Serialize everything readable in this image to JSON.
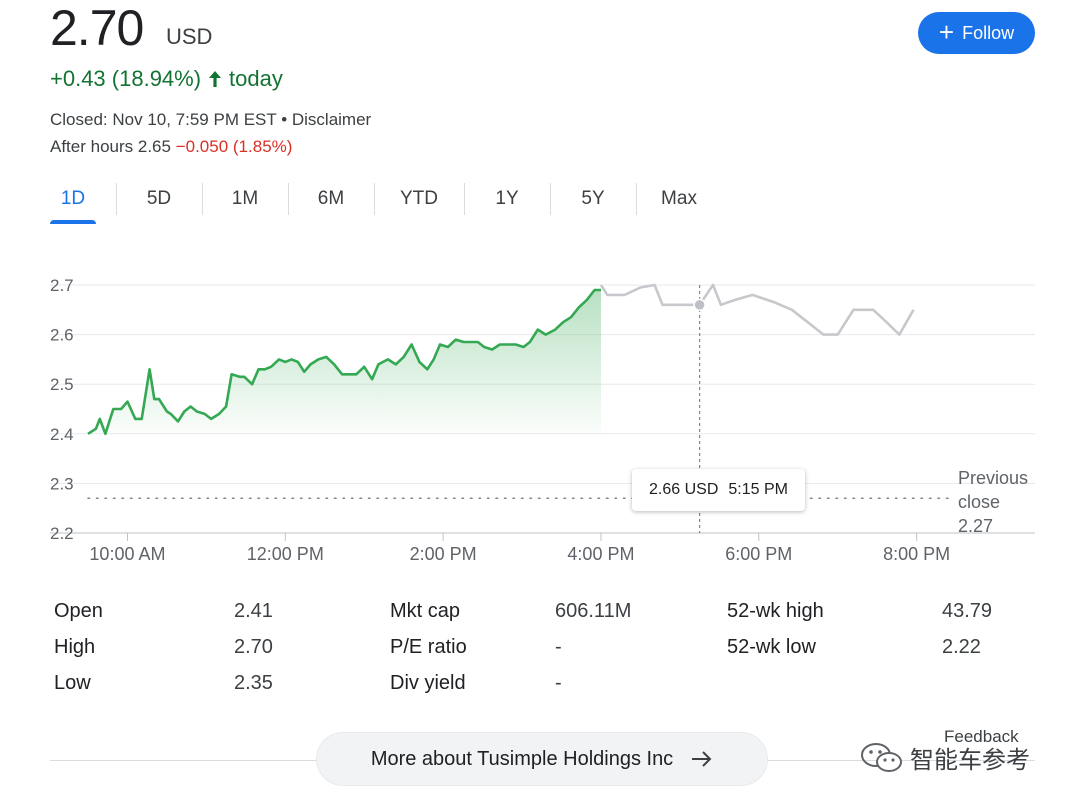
{
  "quote": {
    "price": "2.70",
    "currency": "USD",
    "change": "+0.43 (18.94%)",
    "change_suffix": "today",
    "closed_text": "Closed: Nov 10, 7:59 PM EST",
    "separator": " • ",
    "disclaimer": "Disclaimer",
    "after_hours_label": "After hours 2.65",
    "after_hours_change": "−0.050 (1.85%)",
    "up_color": "#137333",
    "down_color": "#d93025"
  },
  "follow_button": {
    "label": "Follow",
    "icon": "plus-icon"
  },
  "tabs": [
    "1D",
    "5D",
    "1M",
    "6M",
    "YTD",
    "1Y",
    "5Y",
    "Max"
  ],
  "active_tab": "1D",
  "tooltip": {
    "price": "2.66 USD",
    "time": "5:15 PM"
  },
  "previous_close": {
    "label_line1": "Previous",
    "label_line2": "close",
    "value": "2.27"
  },
  "stats": [
    [
      {
        "label": "Open",
        "value": "2.41"
      },
      {
        "label": "Mkt cap",
        "value": "606.11M"
      },
      {
        "label": "52-wk high",
        "value": "43.79"
      }
    ],
    [
      {
        "label": "High",
        "value": "2.70"
      },
      {
        "label": "P/E ratio",
        "value": "-"
      },
      {
        "label": "52-wk low",
        "value": "2.22"
      }
    ],
    [
      {
        "label": "Low",
        "value": "2.35"
      },
      {
        "label": "Div yield",
        "value": "-"
      }
    ]
  ],
  "feedback_label": "Feedback",
  "more_button": {
    "label": "More about Tusimple Holdings Inc",
    "icon": "arrow-right-icon"
  },
  "watermark": {
    "text": "智能车参考",
    "icon": "wechat-icon"
  },
  "chart_data": {
    "type": "line",
    "title": "",
    "xlabel": "",
    "ylabel": "",
    "x_unit": "hour of day",
    "xlim": [
      9.5,
      21.5
    ],
    "ylim": [
      2.2,
      2.7
    ],
    "y_ticks": [
      2.2,
      2.3,
      2.4,
      2.5,
      2.6,
      2.7
    ],
    "x_ticks": [
      {
        "x": 10,
        "label": "10:00 AM"
      },
      {
        "x": 12,
        "label": "12:00 PM"
      },
      {
        "x": 14,
        "label": "2:00 PM"
      },
      {
        "x": 16,
        "label": "4:00 PM"
      },
      {
        "x": 18,
        "label": "6:00 PM"
      },
      {
        "x": 20,
        "label": "8:00 PM"
      }
    ],
    "grid": true,
    "previous_close": 2.27,
    "highlight": {
      "x": 17.25,
      "y": 2.66
    },
    "series": [
      {
        "name": "",
        "color": "#34a853",
        "fill": true,
        "x": [
          9.5,
          9.6,
          9.65,
          9.72,
          9.82,
          9.92,
          10.0,
          10.1,
          10.18,
          10.28,
          10.34,
          10.4,
          10.5,
          10.55,
          10.64,
          10.72,
          10.8,
          10.88,
          10.98,
          11.06,
          11.16,
          11.25,
          11.32,
          11.42,
          11.48,
          11.58,
          11.66,
          11.74,
          11.82,
          11.92,
          12.0,
          12.08,
          12.16,
          12.24,
          12.32,
          12.42,
          12.52,
          12.62,
          12.72,
          12.8,
          12.9,
          13.0,
          13.1,
          13.18,
          13.24,
          13.3,
          13.4,
          13.5,
          13.6,
          13.7,
          13.8,
          13.88,
          13.96,
          14.06,
          14.16,
          14.26,
          14.36,
          14.44,
          14.52,
          14.62,
          14.72,
          14.82,
          14.92,
          15.02,
          15.1,
          15.2,
          15.3,
          15.42,
          15.52,
          15.62,
          15.72,
          15.82,
          15.92,
          16.0
        ],
        "y": [
          2.4,
          2.41,
          2.43,
          2.4,
          2.45,
          2.45,
          2.465,
          2.43,
          2.43,
          2.53,
          2.47,
          2.47,
          2.445,
          2.44,
          2.425,
          2.445,
          2.455,
          2.445,
          2.44,
          2.43,
          2.44,
          2.455,
          2.52,
          2.515,
          2.515,
          2.5,
          2.53,
          2.53,
          2.535,
          2.55,
          2.545,
          2.55,
          2.545,
          2.525,
          2.54,
          2.55,
          2.555,
          2.54,
          2.52,
          2.52,
          2.52,
          2.535,
          2.51,
          2.54,
          2.545,
          2.55,
          2.54,
          2.555,
          2.58,
          2.545,
          2.53,
          2.55,
          2.58,
          2.575,
          2.59,
          2.585,
          2.585,
          2.585,
          2.575,
          2.57,
          2.58,
          2.58,
          2.58,
          2.575,
          2.585,
          2.61,
          2.6,
          2.61,
          2.625,
          2.635,
          2.655,
          2.67,
          2.69,
          2.69
        ]
      },
      {
        "name": "",
        "color": "#c6c8cb",
        "fill": false,
        "x": [
          16.0,
          16.08,
          16.16,
          16.3,
          16.5,
          16.68,
          16.78,
          17.0,
          17.25,
          17.42,
          17.52,
          17.7,
          17.92,
          18.2,
          18.42,
          18.62,
          18.82,
          19.0,
          19.2,
          19.45,
          19.62,
          19.78,
          19.96
        ],
        "y": [
          2.7,
          2.68,
          2.68,
          2.68,
          2.695,
          2.7,
          2.66,
          2.66,
          2.66,
          2.7,
          2.66,
          2.67,
          2.68,
          2.665,
          2.65,
          2.625,
          2.6,
          2.6,
          2.65,
          2.65,
          2.625,
          2.6,
          2.65
        ]
      }
    ]
  }
}
